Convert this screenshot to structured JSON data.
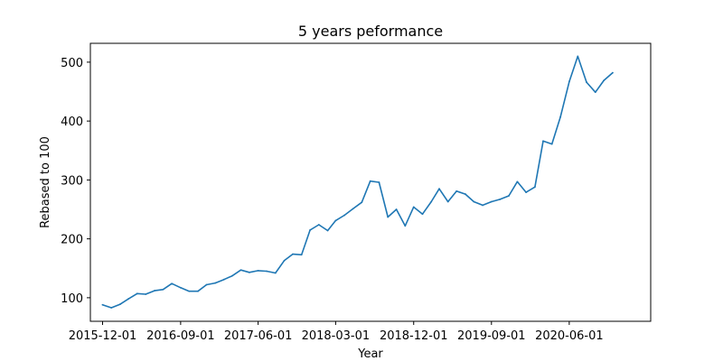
{
  "chart_data": {
    "type": "line",
    "title": "5 years peformance",
    "xlabel": "Year",
    "ylabel": "Rebased to 100",
    "x_tick_labels": [
      "2015-12-01",
      "2016-09-01",
      "2017-06-01",
      "2018-03-01",
      "2018-12-01",
      "2019-09-01",
      "2020-06-01"
    ],
    "y_ticks": [
      100,
      200,
      300,
      400,
      500
    ],
    "xlim": [
      "2015-10-19",
      "2021-03-15"
    ],
    "ylim": [
      60,
      532
    ],
    "grid": false,
    "colors": {
      "line": "#1f77b4"
    },
    "series": [
      {
        "x": [
          "2015-12-01",
          "2016-01-01",
          "2016-02-01",
          "2016-03-01",
          "2016-04-01",
          "2016-05-01",
          "2016-06-01",
          "2016-07-01",
          "2016-08-01",
          "2016-09-01",
          "2016-10-01",
          "2016-11-01",
          "2016-12-01",
          "2017-01-01",
          "2017-02-01",
          "2017-03-01",
          "2017-04-01",
          "2017-05-01",
          "2017-06-01",
          "2017-07-01",
          "2017-08-01",
          "2017-09-01",
          "2017-10-01",
          "2017-11-01",
          "2017-12-01",
          "2018-01-01",
          "2018-02-01",
          "2018-03-01",
          "2018-04-01",
          "2018-05-01",
          "2018-06-01",
          "2018-07-01",
          "2018-08-01",
          "2018-09-01",
          "2018-10-01",
          "2018-11-01",
          "2018-12-01",
          "2019-01-01",
          "2019-02-01",
          "2019-03-01",
          "2019-04-01",
          "2019-05-01",
          "2019-06-01",
          "2019-07-01",
          "2019-08-01",
          "2019-09-01",
          "2019-10-01",
          "2019-11-01",
          "2019-12-01",
          "2020-01-01",
          "2020-02-01",
          "2020-03-01",
          "2020-04-01",
          "2020-05-01",
          "2020-06-01",
          "2020-07-01",
          "2020-08-01",
          "2020-09-01",
          "2020-10-01",
          "2020-11-01"
        ],
        "values": [
          88,
          83,
          89,
          98,
          107,
          106,
          112,
          114,
          124,
          117,
          111,
          111,
          122,
          125,
          131,
          137,
          147,
          143,
          146,
          145,
          142,
          163,
          174,
          173,
          215,
          224,
          214,
          231,
          240,
          251,
          262,
          298,
          296,
          237,
          250,
          222,
          254,
          242,
          263,
          285,
          263,
          281,
          276,
          263,
          257,
          263,
          267,
          273,
          297,
          279,
          288,
          366,
          361,
          407,
          467,
          510,
          466,
          449,
          469,
          482
        ]
      }
    ]
  }
}
